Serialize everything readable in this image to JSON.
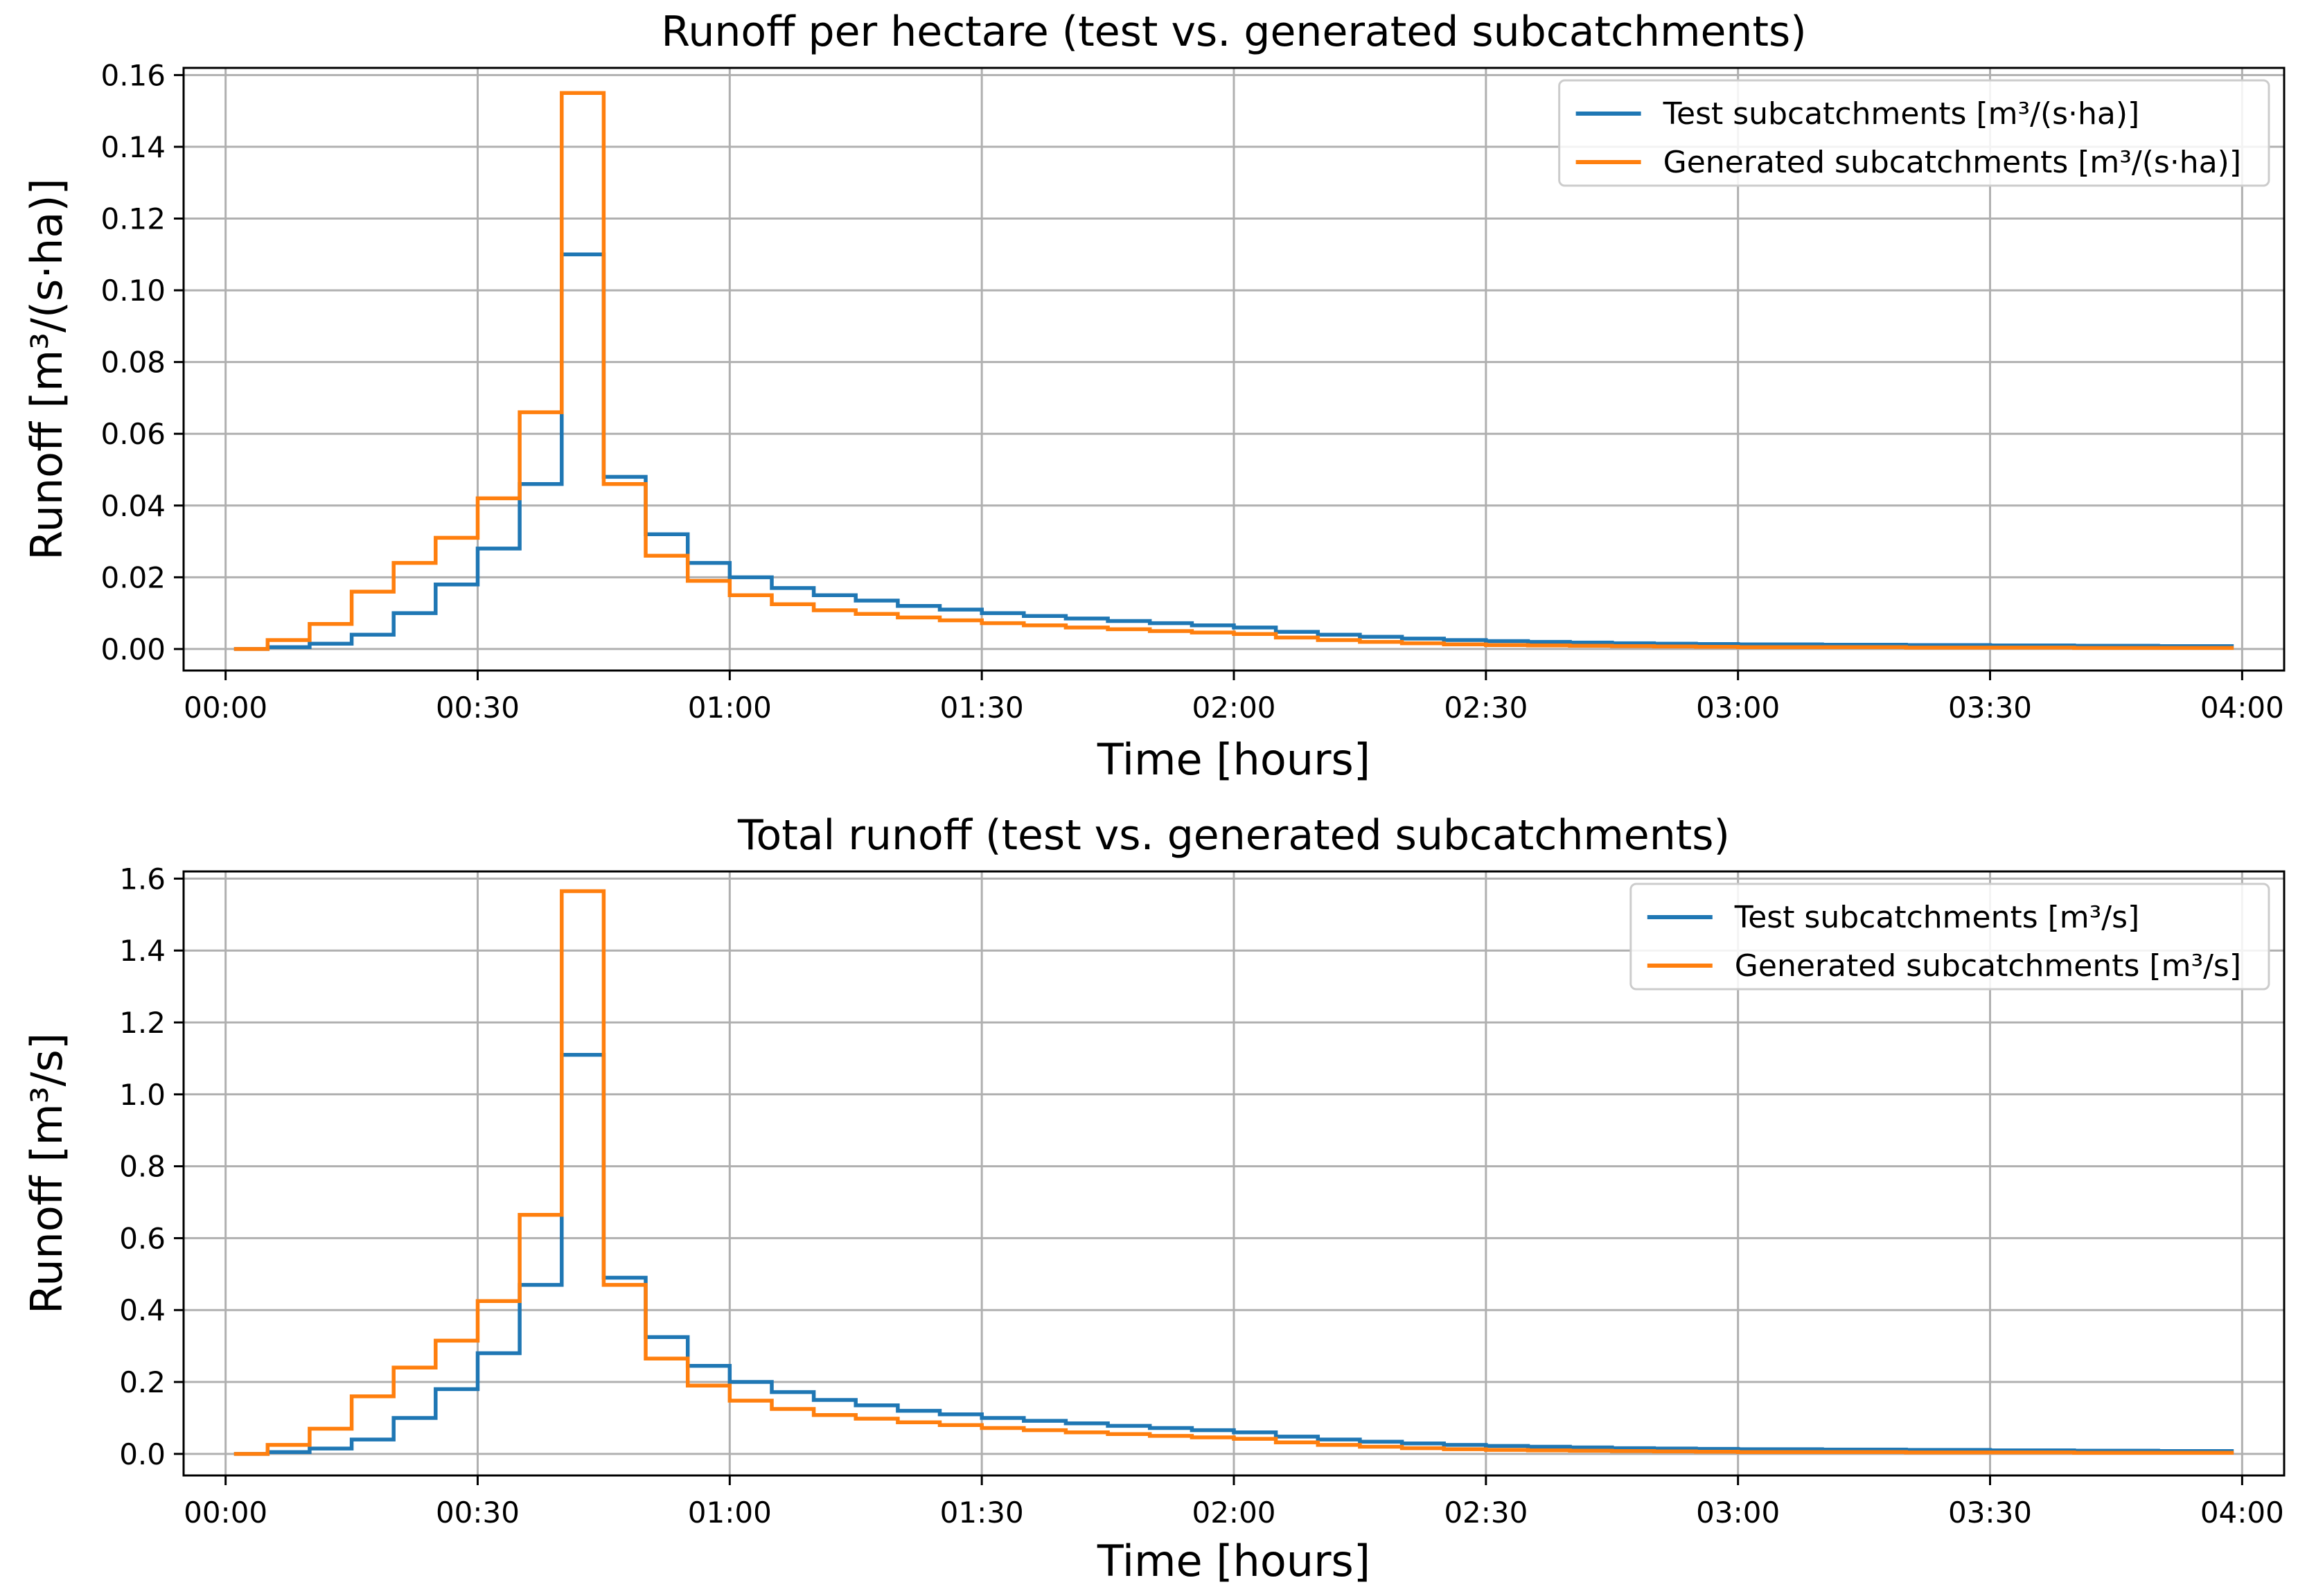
{
  "chart_data": [
    {
      "type": "line",
      "title": "Runoff per hectare (test vs. generated subcatchments)",
      "xlabel": "Time [hours]",
      "ylabel": "Runoff [m³/(s·ha)]",
      "xlim": [
        "00:00",
        "04:00"
      ],
      "ylim": [
        -0.006,
        0.162
      ],
      "x_ticks": [
        "00:00",
        "00:30",
        "01:00",
        "01:30",
        "02:00",
        "02:30",
        "03:00",
        "03:30",
        "04:00"
      ],
      "y_ticks": [
        "0.00",
        "0.02",
        "0.04",
        "0.06",
        "0.08",
        "0.10",
        "0.12",
        "0.14",
        "0.16"
      ],
      "grid": true,
      "legend_placement": "top-right",
      "step": "post",
      "x": [
        "00:01",
        "00:05",
        "00:10",
        "00:15",
        "00:20",
        "00:25",
        "00:30",
        "00:35",
        "00:40",
        "00:45",
        "00:50",
        "00:55",
        "01:00",
        "01:05",
        "01:10",
        "01:15",
        "01:20",
        "01:25",
        "01:30",
        "01:35",
        "01:40",
        "01:45",
        "01:50",
        "01:55",
        "02:00",
        "02:05",
        "02:10",
        "02:15",
        "02:20",
        "02:25",
        "02:30",
        "02:35",
        "02:40",
        "02:45",
        "02:50",
        "02:55",
        "03:00",
        "03:10",
        "03:20",
        "03:30",
        "03:40",
        "03:50",
        "03:59"
      ],
      "series": [
        {
          "name": "Test subcatchments [m³/(s·ha)]",
          "color": "#1f77b4",
          "values": [
            0.0,
            0.0005,
            0.0015,
            0.004,
            0.01,
            0.018,
            0.028,
            0.046,
            0.11,
            0.048,
            0.032,
            0.024,
            0.02,
            0.017,
            0.015,
            0.0135,
            0.012,
            0.011,
            0.01,
            0.0092,
            0.0085,
            0.0078,
            0.0072,
            0.0066,
            0.006,
            0.0048,
            0.004,
            0.0034,
            0.0029,
            0.0025,
            0.0022,
            0.002,
            0.0018,
            0.0016,
            0.0015,
            0.0014,
            0.0013,
            0.0012,
            0.0011,
            0.001,
            0.0009,
            0.0008,
            0.0008
          ]
        },
        {
          "name": "Generated subcatchments [m³/(s·ha)]",
          "color": "#ff7f0e",
          "values": [
            0.0,
            0.0025,
            0.007,
            0.016,
            0.024,
            0.031,
            0.042,
            0.066,
            0.155,
            0.046,
            0.026,
            0.019,
            0.015,
            0.0125,
            0.0108,
            0.0098,
            0.0088,
            0.008,
            0.0072,
            0.0066,
            0.006,
            0.0055,
            0.005,
            0.0046,
            0.0042,
            0.0032,
            0.0025,
            0.002,
            0.0016,
            0.0013,
            0.0011,
            0.001,
            0.0009,
            0.0008,
            0.0007,
            0.0006,
            0.0005,
            0.0005,
            0.0004,
            0.0004,
            0.0003,
            0.0003,
            0.0003
          ]
        }
      ]
    },
    {
      "type": "line",
      "title": "Total runoff (test vs. generated subcatchments)",
      "xlabel": "Time [hours]",
      "ylabel": "Runoff [m³/s]",
      "xlim": [
        "00:00",
        "04:00"
      ],
      "ylim": [
        -0.06,
        1.62
      ],
      "x_ticks": [
        "00:00",
        "00:30",
        "01:00",
        "01:30",
        "02:00",
        "02:30",
        "03:00",
        "03:30",
        "04:00"
      ],
      "y_ticks": [
        "0.0",
        "0.2",
        "0.4",
        "0.6",
        "0.8",
        "1.0",
        "1.2",
        "1.4",
        "1.6"
      ],
      "grid": true,
      "legend_placement": "top-right",
      "step": "post",
      "x": [
        "00:01",
        "00:05",
        "00:10",
        "00:15",
        "00:20",
        "00:25",
        "00:30",
        "00:35",
        "00:40",
        "00:45",
        "00:50",
        "00:55",
        "01:00",
        "01:05",
        "01:10",
        "01:15",
        "01:20",
        "01:25",
        "01:30",
        "01:35",
        "01:40",
        "01:45",
        "01:50",
        "01:55",
        "02:00",
        "02:05",
        "02:10",
        "02:15",
        "02:20",
        "02:25",
        "02:30",
        "02:35",
        "02:40",
        "02:45",
        "02:50",
        "02:55",
        "03:00",
        "03:10",
        "03:20",
        "03:30",
        "03:40",
        "03:50",
        "03:59"
      ],
      "series": [
        {
          "name": "Test subcatchments [m³/s]",
          "color": "#1f77b4",
          "values": [
            0.0,
            0.005,
            0.015,
            0.04,
            0.1,
            0.18,
            0.28,
            0.47,
            1.11,
            0.49,
            0.325,
            0.245,
            0.2,
            0.172,
            0.15,
            0.135,
            0.12,
            0.11,
            0.1,
            0.092,
            0.085,
            0.078,
            0.072,
            0.066,
            0.06,
            0.048,
            0.04,
            0.034,
            0.029,
            0.025,
            0.022,
            0.02,
            0.018,
            0.016,
            0.015,
            0.014,
            0.013,
            0.012,
            0.011,
            0.01,
            0.009,
            0.008,
            0.008
          ]
        },
        {
          "name": "Generated subcatchments [m³/s]",
          "color": "#ff7f0e",
          "values": [
            0.0,
            0.025,
            0.07,
            0.16,
            0.24,
            0.315,
            0.425,
            0.665,
            1.565,
            0.47,
            0.265,
            0.19,
            0.148,
            0.125,
            0.108,
            0.098,
            0.088,
            0.08,
            0.072,
            0.066,
            0.06,
            0.055,
            0.05,
            0.046,
            0.042,
            0.032,
            0.025,
            0.02,
            0.016,
            0.013,
            0.011,
            0.01,
            0.009,
            0.008,
            0.007,
            0.006,
            0.005,
            0.005,
            0.004,
            0.004,
            0.003,
            0.003,
            0.003
          ]
        }
      ]
    }
  ]
}
